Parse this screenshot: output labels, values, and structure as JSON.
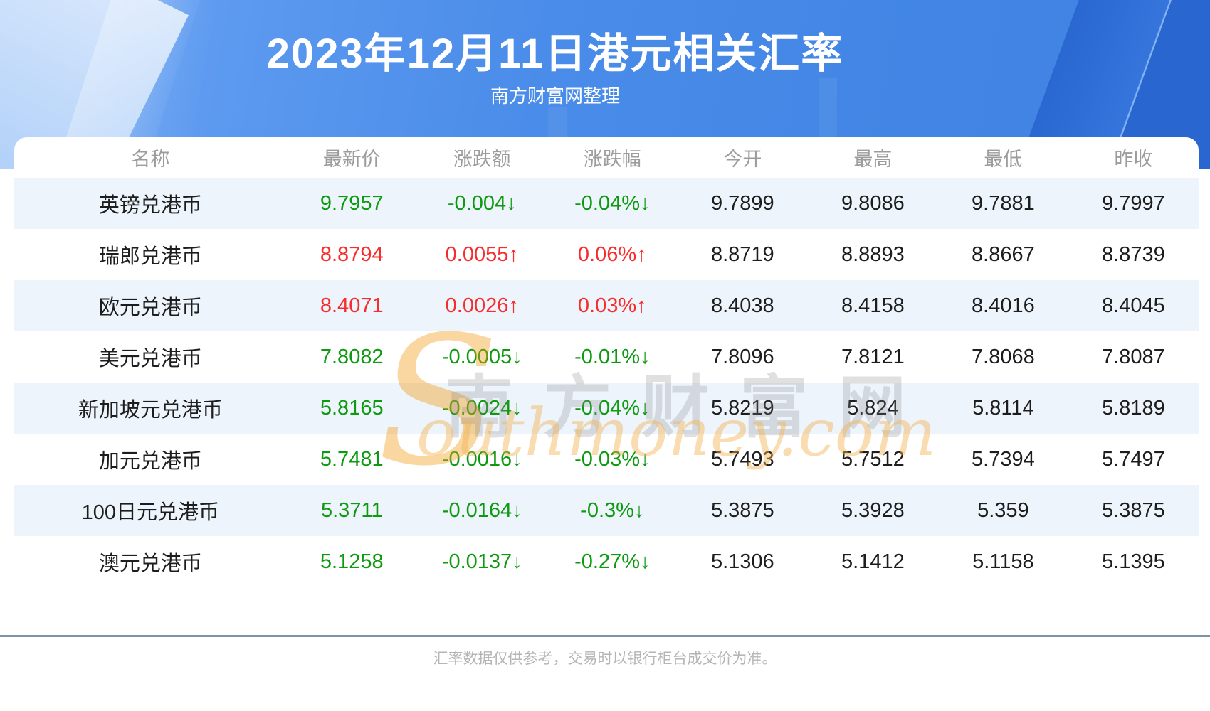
{
  "banner": {
    "title": "2023年12月11日港元相关汇率",
    "subtitle": "南方财富网整理"
  },
  "chart_data": {
    "type": "table",
    "title": "2023年12月11日港元相关汇率",
    "columns": [
      "名称",
      "最新价",
      "涨跌额",
      "涨跌幅",
      "今开",
      "最高",
      "最低",
      "昨收"
    ],
    "rows": [
      {
        "name": "英镑兑港币",
        "latest": "9.7957",
        "change": "-0.004↓",
        "change_pct": "-0.04%↓",
        "open": "9.7899",
        "high": "9.8086",
        "low": "9.7881",
        "prev_close": "9.7997",
        "trend": "down"
      },
      {
        "name": "瑞郎兑港币",
        "latest": "8.8794",
        "change": "0.0055↑",
        "change_pct": "0.06%↑",
        "open": "8.8719",
        "high": "8.8893",
        "low": "8.8667",
        "prev_close": "8.8739",
        "trend": "up"
      },
      {
        "name": "欧元兑港币",
        "latest": "8.4071",
        "change": "0.0026↑",
        "change_pct": "0.03%↑",
        "open": "8.4038",
        "high": "8.4158",
        "low": "8.4016",
        "prev_close": "8.4045",
        "trend": "up"
      },
      {
        "name": "美元兑港币",
        "latest": "7.8082",
        "change": "-0.0005↓",
        "change_pct": "-0.01%↓",
        "open": "7.8096",
        "high": "7.8121",
        "low": "7.8068",
        "prev_close": "7.8087",
        "trend": "down"
      },
      {
        "name": "新加坡元兑港币",
        "latest": "5.8165",
        "change": "-0.0024↓",
        "change_pct": "-0.04%↓",
        "open": "5.8219",
        "high": "5.824",
        "low": "5.8114",
        "prev_close": "5.8189",
        "trend": "down"
      },
      {
        "name": "加元兑港币",
        "latest": "5.7481",
        "change": "-0.0016↓",
        "change_pct": "-0.03%↓",
        "open": "5.7493",
        "high": "5.7512",
        "low": "5.7394",
        "prev_close": "5.7497",
        "trend": "down"
      },
      {
        "name": "100日元兑港币",
        "latest": "5.3711",
        "change": "-0.0164↓",
        "change_pct": "-0.3%↓",
        "open": "5.3875",
        "high": "5.3928",
        "low": "5.359",
        "prev_close": "5.3875",
        "trend": "down"
      },
      {
        "name": "澳元兑港币",
        "latest": "5.1258",
        "change": "-0.0137↓",
        "change_pct": "-0.27%↓",
        "open": "5.1306",
        "high": "5.1412",
        "low": "5.1158",
        "prev_close": "5.1395",
        "trend": "down"
      }
    ]
  },
  "watermark": {
    "swoosh": "S",
    "cn": "南方财富网",
    "en": "outhmoney.com"
  },
  "footer": {
    "disclaimer": "汇率数据仅供参考，交易时以银行柜台成交价为准。"
  },
  "colors": {
    "up": "#f72c2c",
    "down": "#0e9a10",
    "stripe": "#edf4fb",
    "banner_blue": "#4a8ce9",
    "footer_line": "#7e93a8"
  }
}
